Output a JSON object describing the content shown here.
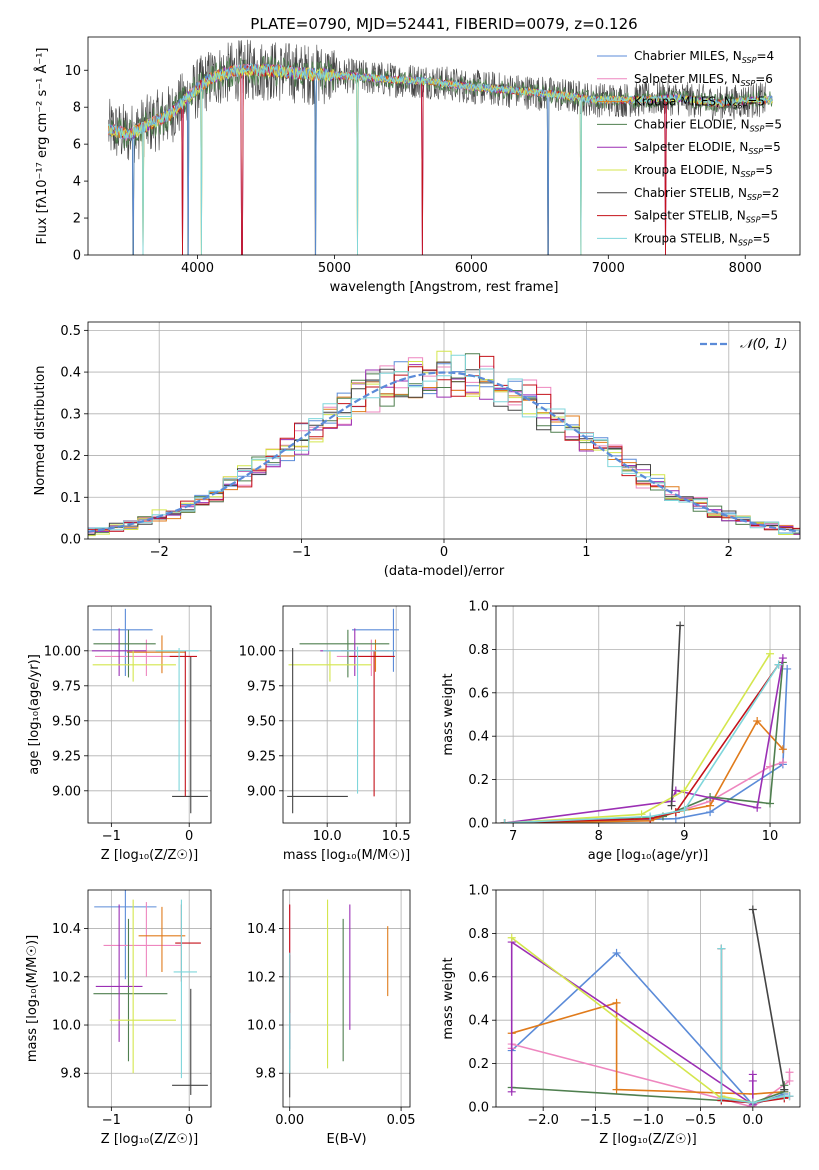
{
  "series_styles": [
    {
      "name": "Chabrier MILES",
      "nssp": "4",
      "color": "#5b8bd8"
    },
    {
      "name": "Salpeter MILES",
      "nssp": "6",
      "color": "#ee86bf"
    },
    {
      "name": "Kroupa MILES",
      "nssp": "5",
      "color": "#e07b1b"
    },
    {
      "name": "Chabrier ELODIE",
      "nssp": "5",
      "color": "#4f7f4f"
    },
    {
      "name": "Salpeter ELODIE",
      "nssp": "5",
      "color": "#9b2fb4"
    },
    {
      "name": "Kroupa ELODIE",
      "nssp": "5",
      "color": "#d4e64d"
    },
    {
      "name": "Chabrier STELIB",
      "nssp": "2",
      "color": "#444444"
    },
    {
      "name": "Salpeter STELIB",
      "nssp": "5",
      "color": "#c4121a"
    },
    {
      "name": "Kroupa STELIB",
      "nssp": "5",
      "color": "#7fd6db"
    }
  ],
  "chart_data": [
    {
      "id": "spectrum",
      "type": "line",
      "title": "PLATE=0790, MJD=52441, FIBERID=0079, z=0.126",
      "xlabel": "wavelength [Angstrom, rest frame]",
      "ylabel": "Flux [fλ10⁻¹⁷ erg cm⁻² s⁻¹ Å⁻¹]",
      "xlim": [
        3200,
        8400
      ],
      "ylim": [
        0,
        11.8
      ],
      "xticks": [
        4000,
        5000,
        6000,
        7000,
        8000
      ],
      "yticks": [
        0,
        2,
        4,
        6,
        8,
        10
      ],
      "grid": false,
      "legend": "top-right",
      "continuum": {
        "x": [
          3350,
          3500,
          3650,
          3800,
          3950,
          4100,
          4300,
          4500,
          4800,
          5100,
          5400,
          5700,
          6000,
          6300,
          6600,
          6900,
          7200,
          7500,
          7800,
          8100
        ],
        "y": [
          6.8,
          6.5,
          7.1,
          7.6,
          8.7,
          9.6,
          10.0,
          10.0,
          9.8,
          9.7,
          9.5,
          9.4,
          9.1,
          8.9,
          8.7,
          8.4,
          8.4,
          8.5,
          8.2,
          8.4
        ]
      },
      "absorption_dips": [
        3530,
        3600,
        3890,
        3930,
        4030,
        4325,
        4860,
        5170,
        5640,
        6560,
        6800,
        7420
      ]
    },
    {
      "id": "residuals",
      "type": "step",
      "xlabel": "(data-model)/error",
      "ylabel": "Normed distribution",
      "xlim": [
        -2.5,
        2.5
      ],
      "ylim": [
        0,
        0.52
      ],
      "xticks": [
        -2,
        -1,
        0,
        1,
        2
      ],
      "yticks": [
        0.0,
        0.1,
        0.2,
        0.3,
        0.4,
        0.5
      ],
      "grid": true,
      "legend": "top-right",
      "reference_label": "𝒩(0, 1)",
      "bin_width": 0.1
    },
    {
      "id": "age-vs-Z",
      "type": "errorbar",
      "xlabel": "Z [log₁₀(Z/Z☉)]",
      "ylabel": "age  [log₁₀(age/yr)]",
      "xlim": [
        -1.3,
        0.28
      ],
      "ylim": [
        8.77,
        10.32
      ],
      "xticks": [
        -1,
        0
      ],
      "yticks": [
        9.0,
        9.25,
        9.5,
        9.75,
        10.0
      ],
      "grid": true,
      "points": [
        {
          "s": 0,
          "x": -0.82,
          "y": 10.15,
          "xerr": [
            0.42,
            0.35
          ],
          "yerr": [
            0.33,
            0.15
          ]
        },
        {
          "s": 1,
          "x": -0.55,
          "y": 9.96,
          "xerr": [
            0.66,
            0.45
          ],
          "yerr": [
            0.14,
            0.12
          ]
        },
        {
          "s": 2,
          "x": -0.35,
          "y": 9.99,
          "xerr": [
            0.45,
            0.3
          ],
          "yerr": [
            0.15,
            0.12
          ]
        },
        {
          "s": 3,
          "x": -0.78,
          "y": 10.05,
          "xerr": [
            0.45,
            0.35
          ],
          "yerr": [
            0.24,
            0.1
          ]
        },
        {
          "s": 4,
          "x": -0.9,
          "y": 10.0,
          "xerr": [
            0.35,
            0.35
          ],
          "yerr": [
            0.18,
            0.16
          ]
        },
        {
          "s": 5,
          "x": -0.72,
          "y": 9.9,
          "xerr": [
            0.52,
            0.55
          ],
          "yerr": [
            0.12,
            0.1
          ]
        },
        {
          "s": 6,
          "x": 0.02,
          "y": 8.96,
          "xerr": [
            0.24,
            0.22
          ],
          "yerr": [
            0.12,
            1.0
          ]
        },
        {
          "s": 7,
          "x": -0.05,
          "y": 9.96,
          "xerr": [
            0.2,
            0.15
          ],
          "yerr": [
            1.0,
            0.04
          ]
        },
        {
          "s": 8,
          "x": -0.13,
          "y": 10.0,
          "xerr": [
            0.3,
            0.25
          ],
          "yerr": [
            1.0,
            0.02
          ]
        }
      ]
    },
    {
      "id": "age-vs-mass",
      "type": "errorbar",
      "xlabel": "mass [log₁₀(M/M☉)]",
      "ylabel": "",
      "xlim": [
        9.68,
        10.6
      ],
      "ylim": [
        8.77,
        10.32
      ],
      "xticks": [
        10.0,
        10.5
      ],
      "yticks": [
        9.0,
        9.25,
        9.5,
        9.75,
        10.0
      ],
      "grid": true,
      "points": [
        {
          "s": 0,
          "x": 10.48,
          "y": 10.15,
          "xerr": [
            0.3,
            0.04
          ],
          "yerr": [
            0.3,
            0.15
          ]
        },
        {
          "s": 1,
          "x": 10.32,
          "y": 9.96,
          "xerr": [
            0.25,
            0.15
          ],
          "yerr": [
            0.14,
            0.12
          ]
        },
        {
          "s": 2,
          "x": 10.35,
          "y": 10.0,
          "xerr": [
            0.25,
            0.1
          ],
          "yerr": [
            0.15,
            0.08
          ]
        },
        {
          "s": 3,
          "x": 10.15,
          "y": 10.05,
          "xerr": [
            0.35,
            0.3
          ],
          "yerr": [
            0.24,
            0.1
          ]
        },
        {
          "s": 4,
          "x": 10.2,
          "y": 10.0,
          "xerr": [
            0.25,
            0.3
          ],
          "yerr": [
            0.18,
            0.16
          ]
        },
        {
          "s": 5,
          "x": 10.02,
          "y": 9.9,
          "xerr": [
            0.3,
            0.3
          ],
          "yerr": [
            0.12,
            0.1
          ]
        },
        {
          "s": 6,
          "x": 9.75,
          "y": 8.96,
          "xerr": [
            0.04,
            0.4
          ],
          "yerr": [
            0.12,
            1.06
          ]
        },
        {
          "s": 7,
          "x": 10.34,
          "y": 9.96,
          "xerr": [
            0.18,
            0.15
          ],
          "yerr": [
            1.0,
            0.04
          ]
        },
        {
          "s": 8,
          "x": 10.22,
          "y": 10.0,
          "xerr": [
            0.25,
            0.28
          ],
          "yerr": [
            1.02,
            0.03
          ]
        }
      ]
    },
    {
      "id": "mass-weight-vs-age",
      "type": "line",
      "xlabel": "age  [log₁₀(age/yr)]",
      "ylabel": "mass weight",
      "xlim": [
        6.8,
        10.35
      ],
      "ylim": [
        0,
        1.0
      ],
      "xticks": [
        7,
        8,
        9,
        10
      ],
      "yticks": [
        0.0,
        0.2,
        0.4,
        0.6,
        0.8,
        1.0
      ],
      "grid": true,
      "series": [
        {
          "s": 0,
          "x": [
            6.9,
            8.9,
            9.3,
            10.15,
            10.2
          ],
          "y": [
            0.0,
            0.02,
            0.05,
            0.27,
            0.71
          ]
        },
        {
          "s": 1,
          "x": [
            6.9,
            8.6,
            8.9,
            9.3,
            10.0,
            10.15
          ],
          "y": [
            0.0,
            0.02,
            0.05,
            0.1,
            0.26,
            0.28
          ]
        },
        {
          "s": 2,
          "x": [
            6.9,
            8.6,
            8.9,
            9.3,
            9.85,
            10.15
          ],
          "y": [
            0.0,
            0.01,
            0.05,
            0.08,
            0.47,
            0.34
          ]
        },
        {
          "s": 3,
          "x": [
            6.9,
            8.75,
            9.3,
            10.0,
            10.15
          ],
          "y": [
            0.0,
            0.03,
            0.12,
            0.09,
            0.74
          ]
        },
        {
          "s": 4,
          "x": [
            6.9,
            8.85,
            8.9,
            9.85,
            10.15
          ],
          "y": [
            0.0,
            0.1,
            0.15,
            0.07,
            0.76
          ]
        },
        {
          "s": 5,
          "x": [
            6.9,
            8.5,
            9.0,
            10.0
          ],
          "y": [
            0.0,
            0.04,
            0.15,
            0.78
          ]
        },
        {
          "s": 6,
          "x": [
            8.85,
            8.95
          ],
          "y": [
            0.08,
            0.91
          ]
        },
        {
          "s": 7,
          "x": [
            6.9,
            8.6,
            8.9,
            10.1
          ],
          "y": [
            0.0,
            0.02,
            0.05,
            0.73
          ]
        },
        {
          "s": 8,
          "x": [
            6.9,
            8.6,
            9.0,
            10.1
          ],
          "y": [
            0.0,
            0.03,
            0.06,
            0.73
          ]
        }
      ]
    },
    {
      "id": "mass-vs-Z",
      "type": "errorbar",
      "xlabel": "Z [log₁₀(Z/Z☉)]",
      "ylabel": "mass [log₁₀(M/M☉)]",
      "xlim": [
        -1.3,
        0.28
      ],
      "ylim": [
        9.66,
        10.56
      ],
      "xticks": [
        -1,
        0
      ],
      "yticks": [
        9.8,
        10.0,
        10.2,
        10.4
      ],
      "grid": true,
      "points": [
        {
          "s": 0,
          "x": -0.82,
          "y": 10.49,
          "xerr": [
            0.4,
            0.4
          ],
          "yerr": [
            0.3,
            0.07
          ]
        },
        {
          "s": 1,
          "x": -0.55,
          "y": 10.33,
          "xerr": [
            0.55,
            0.45
          ],
          "yerr": [
            0.13,
            0.18
          ]
        },
        {
          "s": 2,
          "x": -0.35,
          "y": 10.37,
          "xerr": [
            0.3,
            0.3
          ],
          "yerr": [
            0.15,
            0.12
          ]
        },
        {
          "s": 3,
          "x": -0.78,
          "y": 10.13,
          "xerr": [
            0.45,
            0.5
          ],
          "yerr": [
            0.28,
            0.31
          ]
        },
        {
          "s": 4,
          "x": -0.9,
          "y": 10.16,
          "xerr": [
            0.3,
            0.3
          ],
          "yerr": [
            0.23,
            0.34
          ]
        },
        {
          "s": 5,
          "x": -0.72,
          "y": 10.02,
          "xerr": [
            0.3,
            0.55
          ],
          "yerr": [
            0.22,
            0.5
          ]
        },
        {
          "s": 6,
          "x": 0.02,
          "y": 9.75,
          "xerr": [
            0.24,
            0.22
          ],
          "yerr": [
            0.04,
            0.4
          ]
        },
        {
          "s": 7,
          "x": -0.1,
          "y": 10.34,
          "xerr": [
            0.08,
            0.25
          ],
          "yerr": [
            0.16,
            0.16
          ]
        },
        {
          "s": 8,
          "x": -0.1,
          "y": 10.22,
          "xerr": [
            0.1,
            0.2
          ],
          "yerr": [
            0.44,
            0.3
          ]
        }
      ]
    },
    {
      "id": "mass-vs-ebv",
      "type": "errorbar",
      "xlabel": "E(B-V)",
      "ylabel": "",
      "xlim": [
        -0.003,
        0.054
      ],
      "ylim": [
        9.66,
        10.56
      ],
      "xticks": [
        0.0,
        0.05
      ],
      "yticks": [
        9.8,
        10.0,
        10.2,
        10.4
      ],
      "grid": true,
      "points": [
        {
          "s": 0,
          "x": 0.0,
          "y": 10.2,
          "xerr": [
            0,
            0
          ],
          "yerr": [
            0.3,
            0.1
          ]
        },
        {
          "s": 1,
          "x": 0.0,
          "y": 10.3,
          "xerr": [
            0,
            0
          ],
          "yerr": [
            0.3,
            0.2
          ]
        },
        {
          "s": 2,
          "x": 0.044,
          "y": 10.27,
          "xerr": [
            0,
            0
          ],
          "yerr": [
            0.15,
            0.14
          ]
        },
        {
          "s": 3,
          "x": 0.024,
          "y": 10.13,
          "xerr": [
            0,
            0
          ],
          "yerr": [
            0.28,
            0.31
          ]
        },
        {
          "s": 4,
          "x": 0.027,
          "y": 10.16,
          "xerr": [
            0,
            0
          ],
          "yerr": [
            0.18,
            0.34
          ]
        },
        {
          "s": 5,
          "x": 0.017,
          "y": 10.16,
          "xerr": [
            0,
            0
          ],
          "yerr": [
            0.34,
            0.36
          ]
        },
        {
          "s": 6,
          "x": 0.0,
          "y": 10.0,
          "xerr": [
            0,
            0
          ],
          "yerr": [
            0.3,
            0.29
          ]
        },
        {
          "s": 7,
          "x": 0.0,
          "y": 10.35,
          "xerr": [
            0,
            0
          ],
          "yerr": [
            0.3,
            0.15
          ]
        },
        {
          "s": 8,
          "x": 0.0,
          "y": 10.0,
          "xerr": [
            0,
            0
          ],
          "yerr": [
            0.2,
            0.3
          ]
        }
      ]
    },
    {
      "id": "mass-weight-vs-Z",
      "type": "line",
      "xlabel": "Z [log₁₀(Z/Z☉)]",
      "ylabel": "mass weight",
      "xlim": [
        -2.45,
        0.45
      ],
      "ylim": [
        0,
        1.0
      ],
      "xticks": [
        -2.0,
        -1.5,
        -1.0,
        -0.5,
        0.0
      ],
      "yticks": [
        0.0,
        0.2,
        0.4,
        0.6,
        0.8,
        1.0
      ],
      "grid": true,
      "series": [
        {
          "s": 0,
          "x": [
            -2.3,
            -1.3,
            0.0,
            0.3,
            0.3
          ],
          "y": [
            0.26,
            0.71,
            0.01,
            0.06,
            0.08
          ]
        },
        {
          "s": 1,
          "x": [
            -2.3,
            -2.3,
            0.0,
            0.35,
            0.35
          ],
          "y": [
            0.27,
            0.29,
            0.0,
            0.12,
            0.16
          ]
        },
        {
          "s": 2,
          "x": [
            -2.3,
            -1.3,
            -1.3,
            0.0,
            0.3
          ],
          "y": [
            0.34,
            0.48,
            0.08,
            0.06,
            0.07
          ]
        },
        {
          "s": 3,
          "x": [
            -2.3,
            -0.3,
            0.0,
            0.3,
            0.3
          ],
          "y": [
            0.09,
            0.03,
            0.02,
            0.07,
            0.1
          ]
        },
        {
          "s": 4,
          "x": [
            -2.3,
            -2.3,
            0.0,
            0.0,
            0.0
          ],
          "y": [
            0.07,
            0.76,
            0.01,
            0.12,
            0.15
          ]
        },
        {
          "s": 5,
          "x": [
            -2.3,
            -0.3,
            -0.3,
            0.0,
            0.3
          ],
          "y": [
            0.78,
            0.04,
            0.05,
            0.02,
            0.05
          ]
        },
        {
          "s": 6,
          "x": [
            0.0,
            0.3
          ],
          "y": [
            0.91,
            0.08
          ]
        },
        {
          "s": 7,
          "x": [
            -0.3,
            -0.3,
            0.0,
            0.3,
            0.35
          ],
          "y": [
            0.73,
            0.03,
            0.02,
            0.04,
            0.05
          ]
        },
        {
          "s": 8,
          "x": [
            -0.3,
            -0.3,
            0.0,
            0.3,
            0.35
          ],
          "y": [
            0.73,
            0.04,
            0.02,
            0.05,
            0.05
          ]
        }
      ]
    }
  ]
}
